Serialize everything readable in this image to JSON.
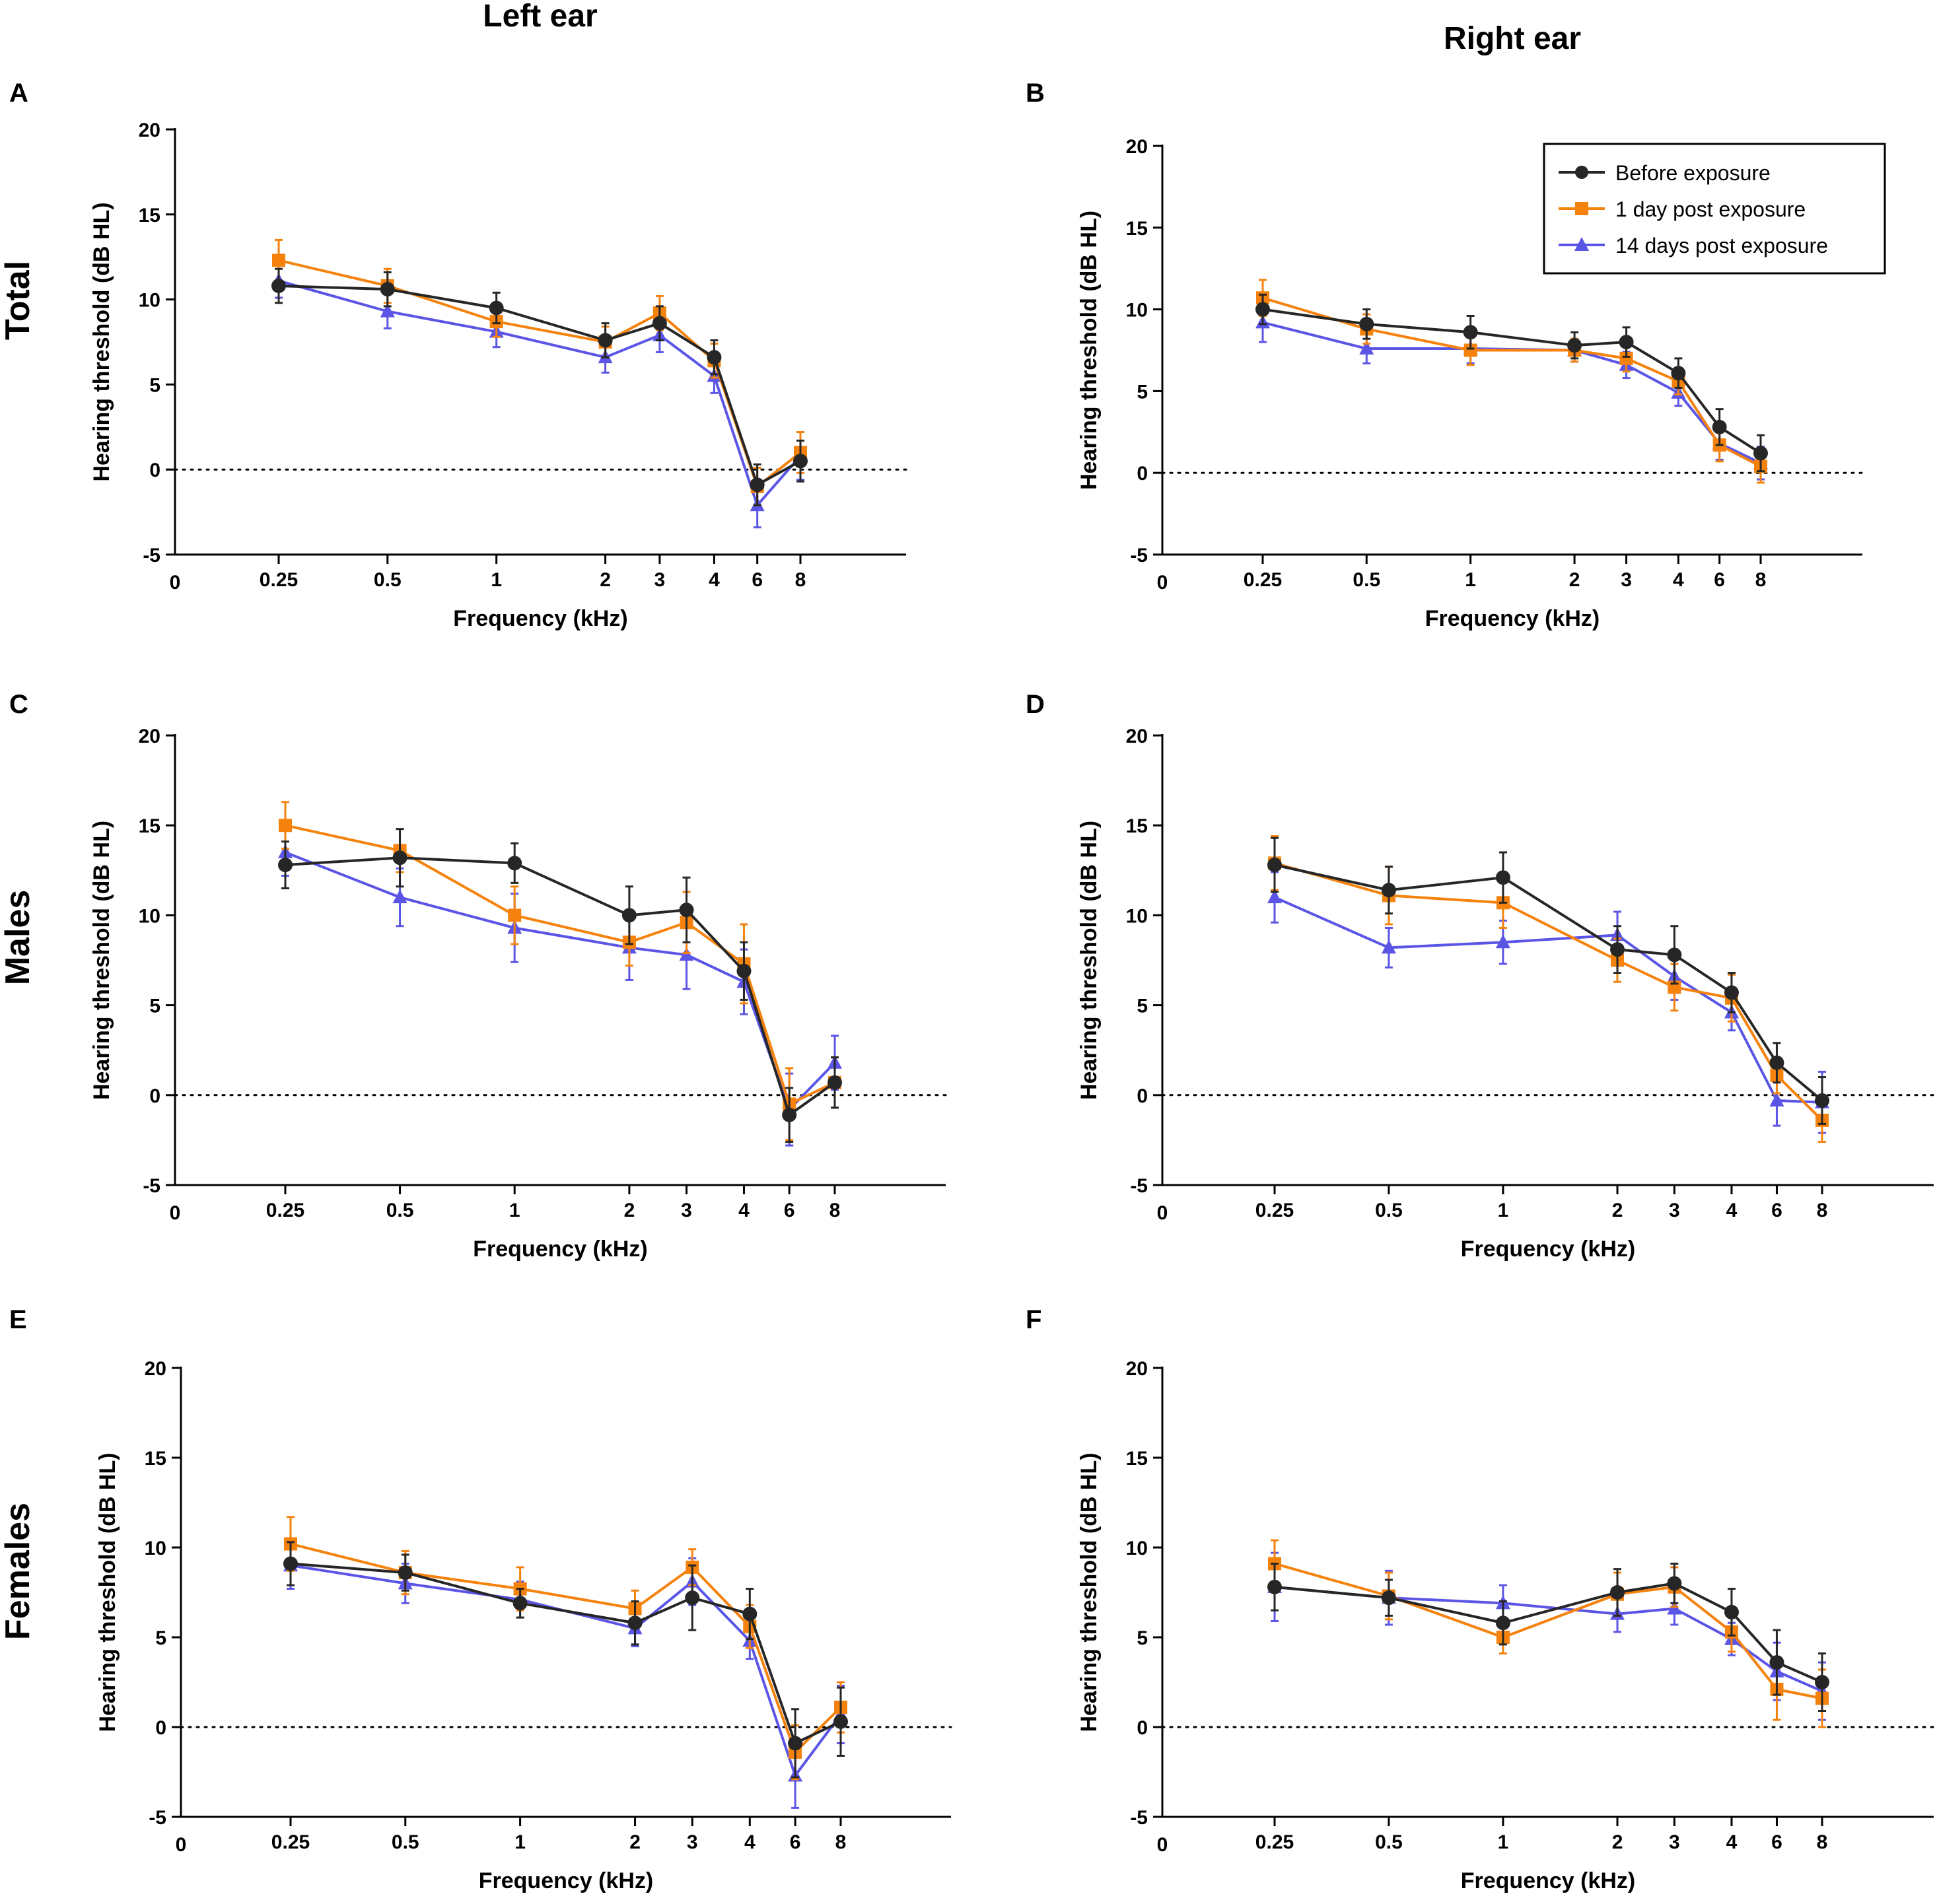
{
  "figure": {
    "column_titles": [
      "Left ear",
      "Right ear"
    ],
    "row_titles": [
      "Total",
      "Males",
      "Females"
    ]
  },
  "colors": {
    "before": "#262626",
    "day1": "#F5820D",
    "day14": "#5B55E6",
    "axis": "#000000"
  },
  "legend": {
    "entries": [
      "Before exposure",
      "1 day post exposure",
      "14 days post exposure"
    ]
  },
  "chart_data": [
    {
      "panel": "A",
      "row": "Total",
      "ear": "Left ear",
      "type": "line",
      "xlabel": "Frequency (kHz)",
      "ylabel": "Hearing threshold (dB HL)",
      "categories": [
        "0.25",
        "0.5",
        "1",
        "2",
        "3",
        "4",
        "6",
        "8"
      ],
      "x_origin_label": "0",
      "ylim": [
        -5,
        20
      ],
      "yticks": [
        -5,
        0,
        5,
        10,
        15,
        20
      ],
      "reference_line": 0,
      "series": [
        {
          "name": "Before exposure",
          "marker": "circle",
          "values": [
            10.8,
            10.6,
            9.5,
            7.6,
            8.6,
            6.6,
            -0.9,
            0.5
          ],
          "errors": [
            1.0,
            1.0,
            0.9,
            1.0,
            1.0,
            1.0,
            1.2,
            1.2
          ]
        },
        {
          "name": "1 day post exposure",
          "marker": "square",
          "values": [
            12.3,
            10.8,
            8.7,
            7.5,
            9.2,
            6.4,
            -1.0,
            1.0
          ],
          "errors": [
            1.2,
            1.0,
            0.9,
            0.9,
            1.0,
            1.0,
            1.1,
            1.2
          ]
        },
        {
          "name": "14 days post exposure",
          "marker": "triangle",
          "values": [
            11.1,
            9.3,
            8.1,
            6.6,
            7.9,
            5.5,
            -2.1,
            0.8
          ],
          "errors": [
            1.0,
            1.0,
            0.9,
            0.9,
            1.0,
            1.0,
            1.3,
            1.4
          ]
        }
      ]
    },
    {
      "panel": "B",
      "row": "Total",
      "ear": "Right ear",
      "type": "line",
      "xlabel": "Frequency (kHz)",
      "ylabel": "Hearing threshold (dB HL)",
      "categories": [
        "0.25",
        "0.5",
        "1",
        "2",
        "3",
        "4",
        "6",
        "8"
      ],
      "x_origin_label": "0",
      "ylim": [
        -5,
        20
      ],
      "yticks": [
        -5,
        0,
        5,
        10,
        15,
        20
      ],
      "reference_line": 0,
      "legend_position": "top-right",
      "series": [
        {
          "name": "Before exposure",
          "marker": "circle",
          "values": [
            10.0,
            9.1,
            8.6,
            7.8,
            8.0,
            6.1,
            2.8,
            1.2
          ],
          "errors": [
            0.9,
            0.9,
            1.0,
            0.8,
            0.9,
            0.9,
            1.1,
            1.1
          ]
        },
        {
          "name": "1 day post exposure",
          "marker": "square",
          "values": [
            10.7,
            8.8,
            7.5,
            7.5,
            7.0,
            5.6,
            1.7,
            0.4
          ],
          "errors": [
            1.1,
            0.9,
            0.9,
            0.7,
            0.8,
            0.8,
            1.0,
            1.0
          ]
        },
        {
          "name": "14 days post exposure",
          "marker": "triangle",
          "values": [
            9.2,
            7.6,
            7.6,
            7.5,
            6.6,
            4.9,
            1.8,
            0.6
          ],
          "errors": [
            1.2,
            0.9,
            0.9,
            0.7,
            0.8,
            0.8,
            1.0,
            1.0
          ]
        }
      ]
    },
    {
      "panel": "C",
      "row": "Males",
      "ear": "Left ear",
      "type": "line",
      "xlabel": "Frequency (kHz)",
      "ylabel": "Hearing threshold (dB HL)",
      "categories": [
        "0.25",
        "0.5",
        "1",
        "2",
        "3",
        "4",
        "6",
        "8"
      ],
      "x_origin_label": "0",
      "ylim": [
        -5,
        20
      ],
      "yticks": [
        -5,
        0,
        5,
        10,
        15,
        20
      ],
      "reference_line": 0,
      "series": [
        {
          "name": "Before exposure",
          "marker": "circle",
          "values": [
            12.8,
            13.2,
            12.9,
            10.0,
            10.3,
            6.9,
            -1.1,
            0.7
          ],
          "errors": [
            1.3,
            1.6,
            1.1,
            1.6,
            1.8,
            1.6,
            1.5,
            1.4
          ]
        },
        {
          "name": "1 day post exposure",
          "marker": "square",
          "values": [
            15.0,
            13.6,
            10.0,
            8.5,
            9.6,
            7.3,
            -0.5,
            0.7
          ],
          "errors": [
            1.3,
            1.2,
            1.6,
            1.3,
            1.7,
            2.2,
            2.0,
            1.4
          ]
        },
        {
          "name": "14 days post exposure",
          "marker": "triangle",
          "values": [
            13.5,
            11.0,
            9.3,
            8.2,
            7.8,
            6.3,
            -0.8,
            1.8
          ],
          "errors": [
            1.3,
            1.6,
            1.9,
            1.8,
            1.9,
            1.8,
            2.0,
            1.5
          ]
        }
      ]
    },
    {
      "panel": "D",
      "row": "Males",
      "ear": "Right ear",
      "type": "line",
      "xlabel": "Frequency (kHz)",
      "ylabel": "Hearing threshold (dB HL)",
      "categories": [
        "0.25",
        "0.5",
        "1",
        "2",
        "3",
        "4",
        "6",
        "8"
      ],
      "x_origin_label": "0",
      "ylim": [
        -5,
        20
      ],
      "yticks": [
        -5,
        0,
        5,
        10,
        15,
        20
      ],
      "reference_line": 0,
      "series": [
        {
          "name": "Before exposure",
          "marker": "circle",
          "values": [
            12.8,
            11.4,
            12.1,
            8.1,
            7.8,
            5.7,
            1.8,
            -0.3
          ],
          "errors": [
            1.5,
            1.3,
            1.4,
            1.3,
            1.6,
            1.1,
            1.1,
            1.3
          ]
        },
        {
          "name": "1 day post exposure",
          "marker": "square",
          "values": [
            12.9,
            11.1,
            10.7,
            7.5,
            6.0,
            5.4,
            1.1,
            -1.4
          ],
          "errors": [
            1.5,
            1.6,
            1.4,
            1.2,
            1.3,
            1.3,
            1.0,
            1.2
          ]
        },
        {
          "name": "14 days post exposure",
          "marker": "triangle",
          "values": [
            11.0,
            8.2,
            8.5,
            8.9,
            6.6,
            4.6,
            -0.3,
            -0.4
          ],
          "errors": [
            1.4,
            1.1,
            1.2,
            1.3,
            1.3,
            1.0,
            1.4,
            1.7
          ]
        }
      ]
    },
    {
      "panel": "E",
      "row": "Females",
      "ear": "Left ear",
      "type": "line",
      "xlabel": "Frequency (kHz)",
      "ylabel": "Hearing threshold (dB HL)",
      "categories": [
        "0.25",
        "0.5",
        "1",
        "2",
        "3",
        "4",
        "6",
        "8"
      ],
      "x_origin_label": "0",
      "ylim": [
        -5,
        20
      ],
      "yticks": [
        -5,
        0,
        5,
        10,
        15,
        20
      ],
      "reference_line": 0,
      "series": [
        {
          "name": "Before exposure",
          "marker": "circle",
          "values": [
            9.1,
            8.6,
            6.9,
            5.8,
            7.2,
            6.3,
            -0.9,
            0.3
          ],
          "errors": [
            1.2,
            1.0,
            0.8,
            1.2,
            1.8,
            1.4,
            1.9,
            1.9
          ]
        },
        {
          "name": "1 day post exposure",
          "marker": "square",
          "values": [
            10.2,
            8.6,
            7.7,
            6.6,
            8.9,
            5.6,
            -1.4,
            1.1
          ],
          "errors": [
            1.5,
            1.2,
            1.2,
            1.0,
            1.0,
            1.2,
            1.5,
            1.4
          ]
        },
        {
          "name": "14 days post exposure",
          "marker": "triangle",
          "values": [
            9.0,
            8.0,
            7.1,
            5.5,
            8.1,
            4.8,
            -2.7,
            0.7
          ],
          "errors": [
            1.3,
            1.1,
            1.0,
            1.0,
            1.3,
            1.0,
            1.8,
            1.6
          ]
        }
      ]
    },
    {
      "panel": "F",
      "row": "Females",
      "ear": "Right ear",
      "type": "line",
      "xlabel": "Frequency (kHz)",
      "ylabel": "Hearing threshold (dB HL)",
      "categories": [
        "0.25",
        "0.5",
        "1",
        "2",
        "3",
        "4",
        "6",
        "8"
      ],
      "x_origin_label": "0",
      "ylim": [
        -5,
        20
      ],
      "yticks": [
        -5,
        0,
        5,
        10,
        15,
        20
      ],
      "reference_line": 0,
      "series": [
        {
          "name": "Before exposure",
          "marker": "circle",
          "values": [
            7.8,
            7.2,
            5.8,
            7.5,
            8.0,
            6.4,
            3.6,
            2.5
          ],
          "errors": [
            1.3,
            1.0,
            1.2,
            1.3,
            1.1,
            1.3,
            1.8,
            1.6
          ]
        },
        {
          "name": "1 day post exposure",
          "marker": "square",
          "values": [
            9.1,
            7.3,
            5.0,
            7.4,
            7.8,
            5.3,
            2.1,
            1.6
          ],
          "errors": [
            1.3,
            1.3,
            0.9,
            1.2,
            1.1,
            1.1,
            1.7,
            1.6
          ]
        },
        {
          "name": "14 days post exposure",
          "marker": "triangle",
          "values": [
            7.8,
            7.2,
            6.9,
            6.3,
            6.6,
            4.9,
            3.1,
            2.0
          ],
          "errors": [
            1.9,
            1.5,
            1.0,
            1.0,
            0.9,
            0.9,
            1.6,
            1.6
          ]
        }
      ]
    }
  ]
}
